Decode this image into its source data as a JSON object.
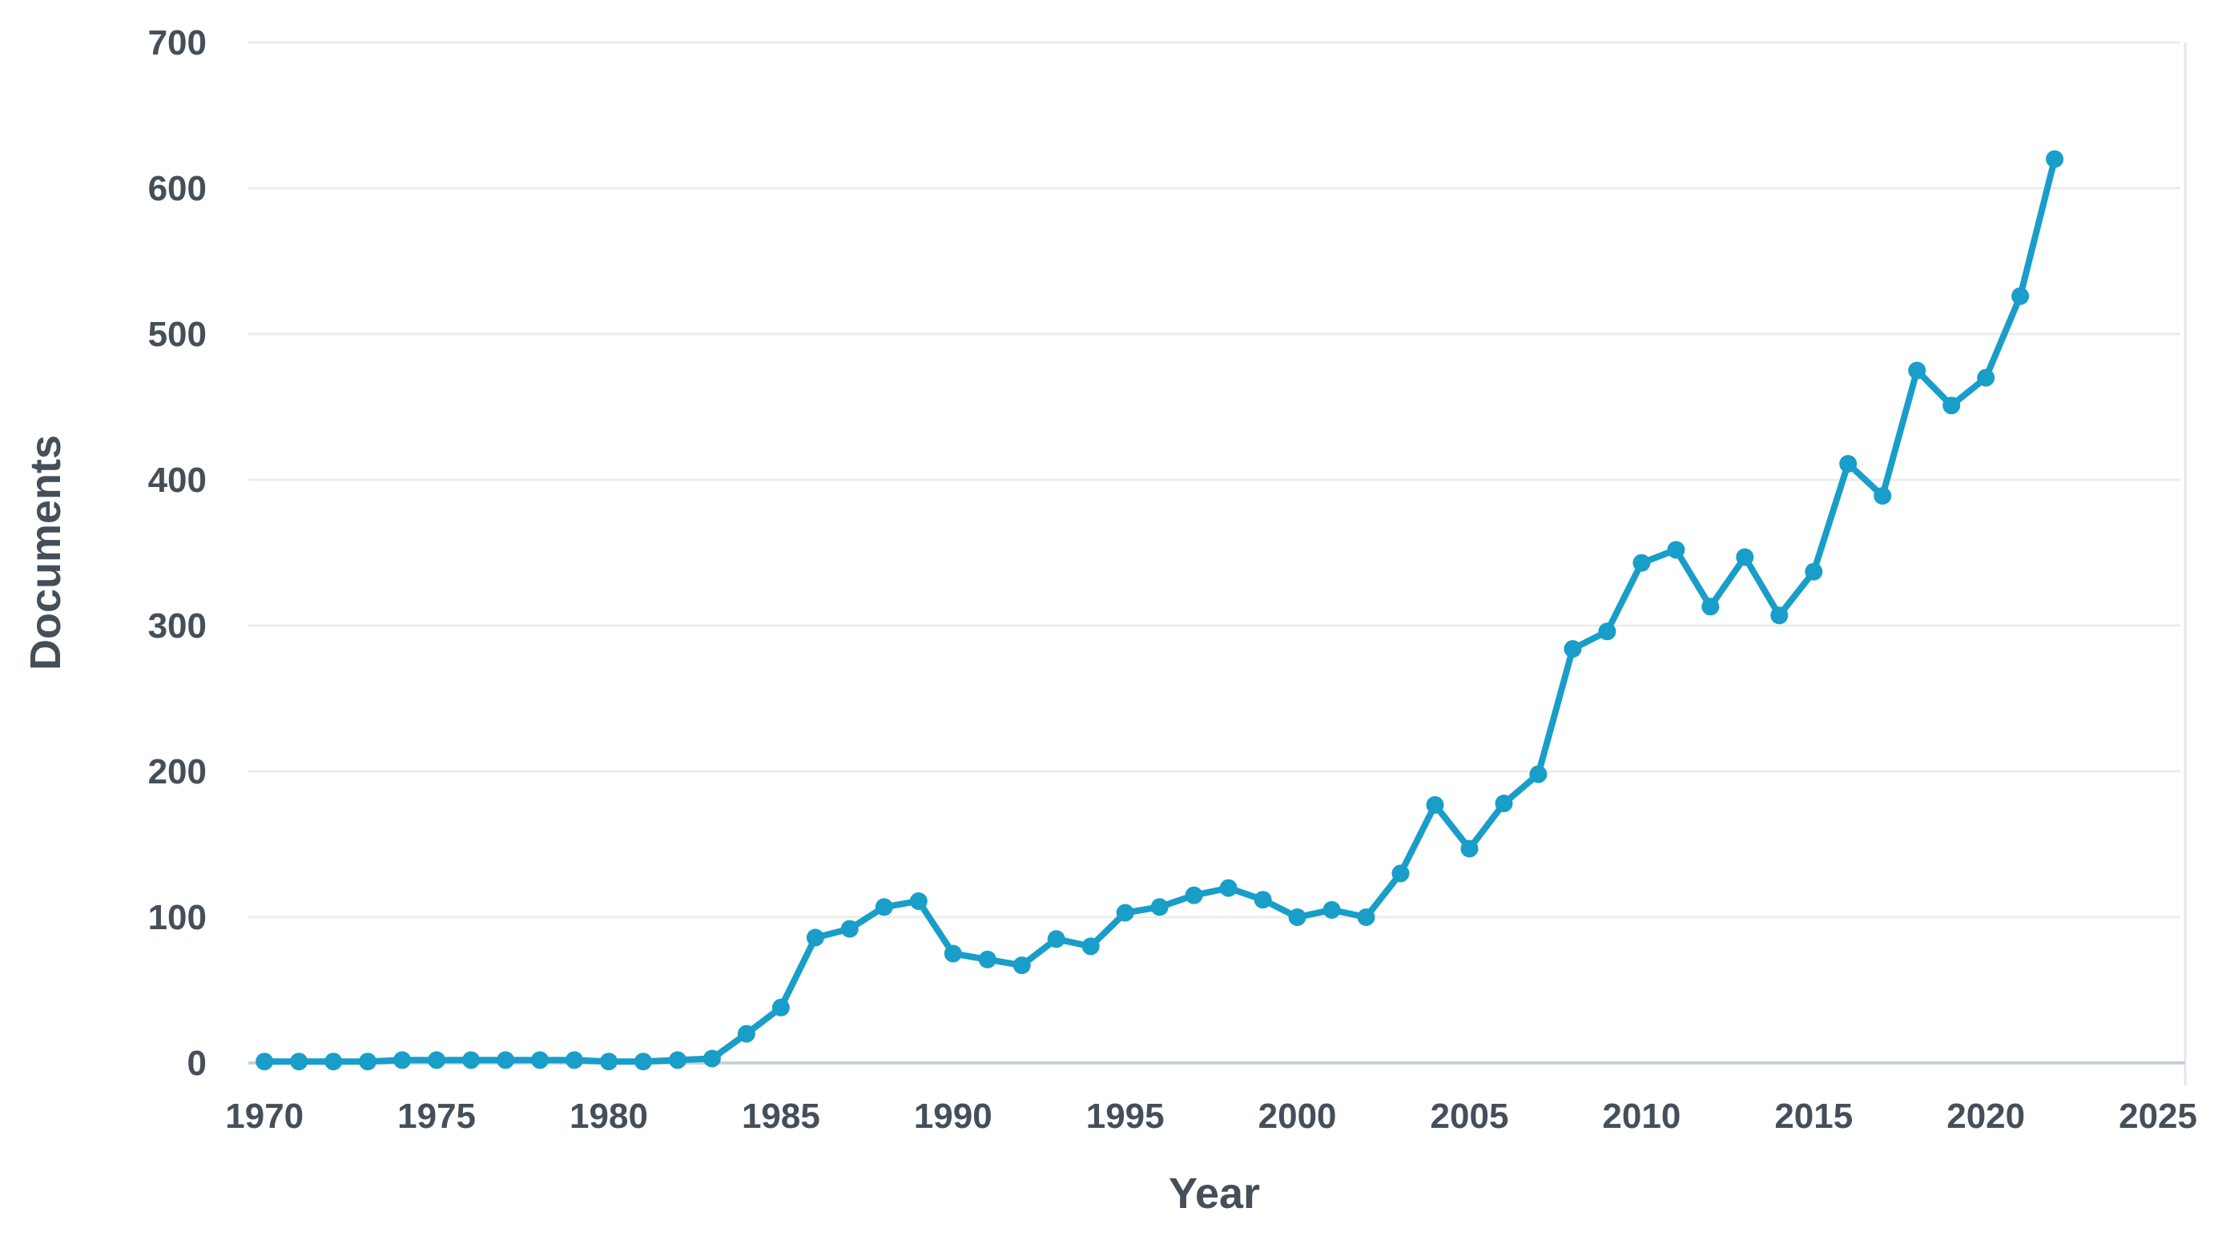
{
  "chart_data": {
    "type": "line",
    "title": "",
    "xlabel": "Year",
    "ylabel": "Documents",
    "series_name": "Documents",
    "x": [
      1970,
      1971,
      1972,
      1973,
      1974,
      1975,
      1976,
      1977,
      1978,
      1979,
      1980,
      1981,
      1982,
      1983,
      1984,
      1985,
      1986,
      1987,
      1988,
      1989,
      1990,
      1991,
      1992,
      1993,
      1994,
      1995,
      1996,
      1997,
      1998,
      1999,
      2000,
      2001,
      2002,
      2003,
      2004,
      2005,
      2006,
      2007,
      2008,
      2009,
      2010,
      2011,
      2012,
      2013,
      2014,
      2015,
      2016,
      2017,
      2018,
      2019,
      2020,
      2021,
      2022
    ],
    "values": [
      1,
      1,
      1,
      1,
      2,
      2,
      2,
      2,
      2,
      2,
      1,
      1,
      2,
      3,
      20,
      38,
      86,
      92,
      107,
      111,
      75,
      71,
      67,
      85,
      80,
      103,
      107,
      115,
      120,
      112,
      100,
      105,
      100,
      130,
      177,
      147,
      178,
      198,
      284,
      296,
      343,
      352,
      313,
      347,
      307,
      337,
      411,
      389,
      475,
      451,
      470,
      526,
      620
    ],
    "xlim": [
      1969.53,
      2025.65
    ],
    "ylim": [
      0,
      700
    ],
    "xticks": [
      1970,
      1975,
      1980,
      1985,
      1990,
      1995,
      2000,
      2005,
      2010,
      2015,
      2020,
      2025
    ],
    "yticks": [
      0,
      100,
      200,
      300,
      400,
      500,
      600,
      700
    ],
    "grid": "horizontal",
    "legend": "none",
    "marker": "circle",
    "colors": {
      "line": "#189EC8",
      "grid": "#ececec",
      "axis_line": "#c7d0d9",
      "frame_right": "#e3e8ee",
      "text": "#454f59",
      "background": "#ffffff"
    }
  }
}
